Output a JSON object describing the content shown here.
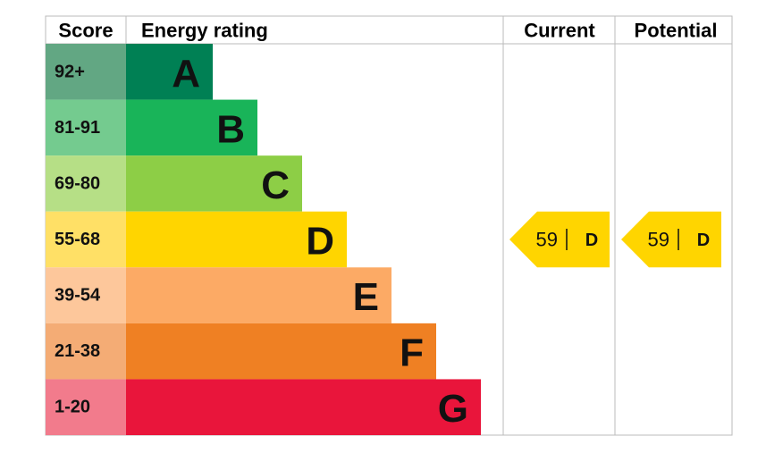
{
  "header": {
    "score": "Score",
    "energy_rating": "Energy rating",
    "current": "Current",
    "potential": "Potential"
  },
  "bands": [
    {
      "score": "92+",
      "letter": "A"
    },
    {
      "score": "81-91",
      "letter": "B"
    },
    {
      "score": "69-80",
      "letter": "C"
    },
    {
      "score": "55-68",
      "letter": "D"
    },
    {
      "score": "39-54",
      "letter": "E"
    },
    {
      "score": "21-38",
      "letter": "F"
    },
    {
      "score": "1-20",
      "letter": "G"
    }
  ],
  "current": {
    "score": 59,
    "rating": "D"
  },
  "potential": {
    "score": 59,
    "rating": "D"
  }
}
